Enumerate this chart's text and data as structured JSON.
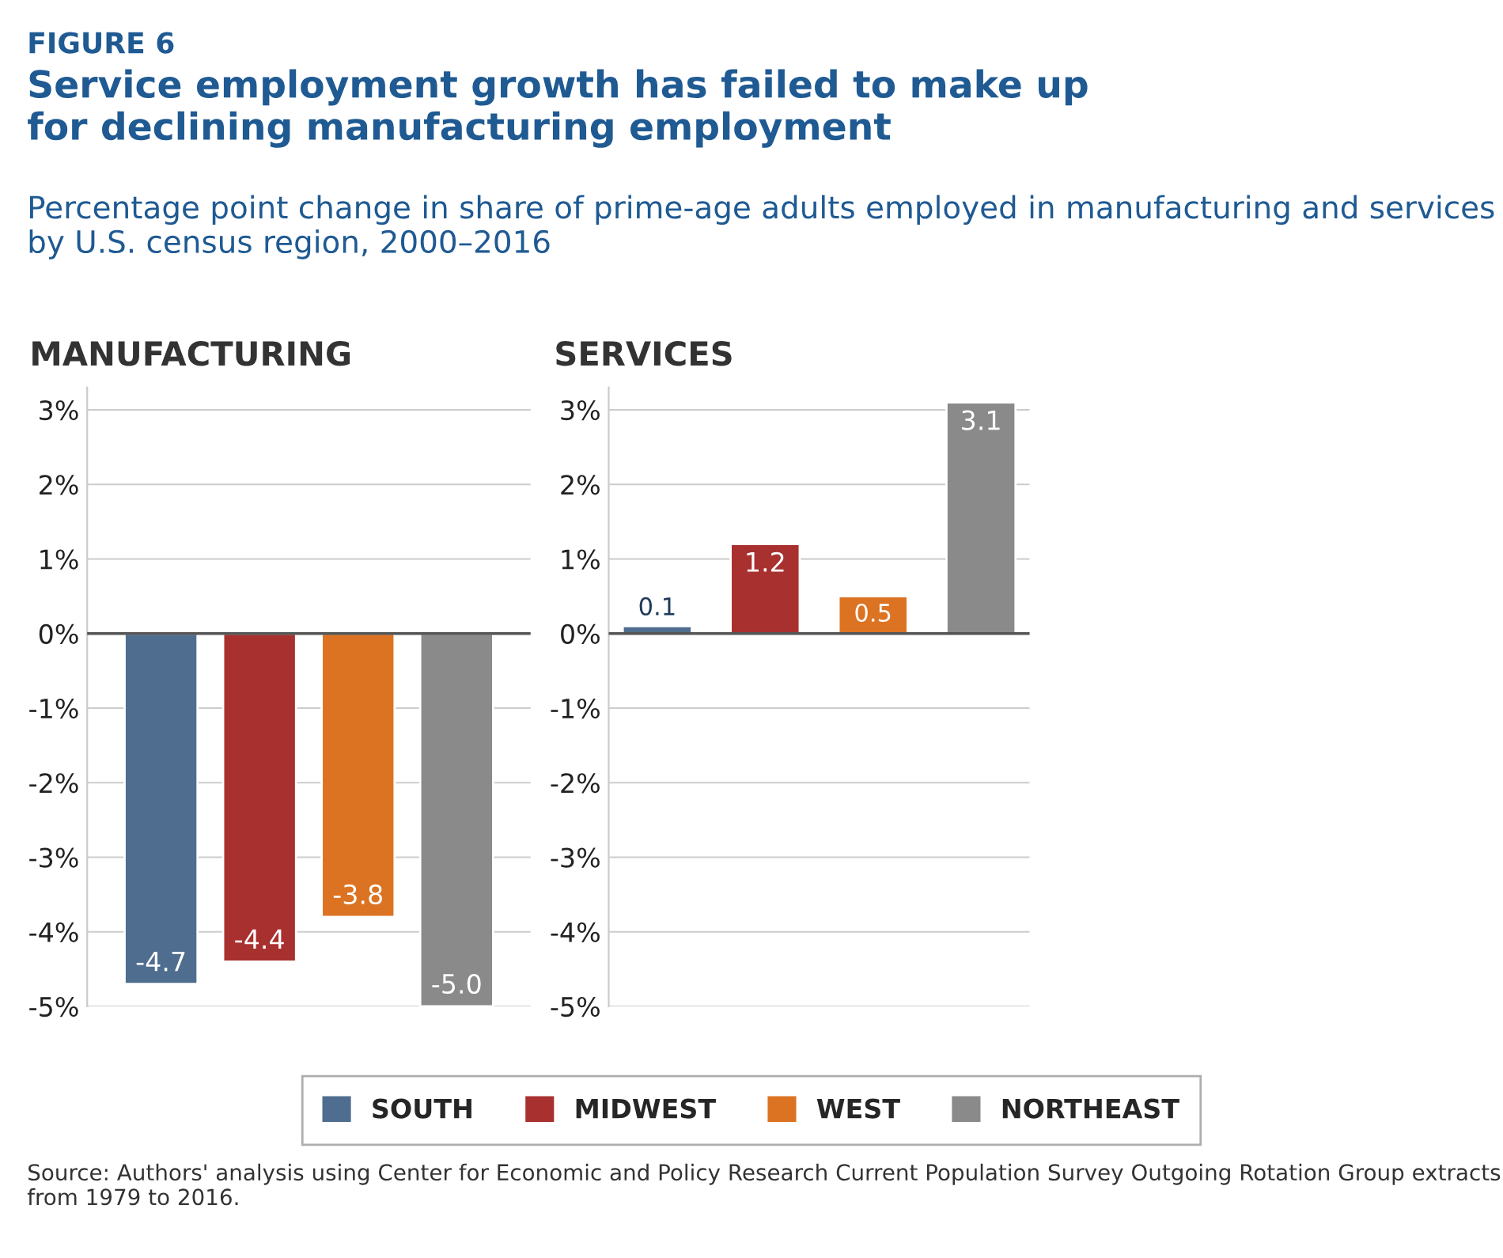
{
  "chart_data": [
    {
      "type": "bar",
      "title": "MANUFACTURING",
      "categories": [
        null
      ],
      "series": [
        {
          "name": "SOUTH",
          "color": "#4f6d8f",
          "values": [
            -4.7
          ],
          "value_labels": [
            "-4.7"
          ]
        },
        {
          "name": "MIDWEST",
          "color": "#a8302f",
          "values": [
            -4.4
          ],
          "value_labels": [
            "-4.4"
          ]
        },
        {
          "name": "WEST",
          "color": "#dc7322",
          "values": [
            -3.8
          ],
          "value_labels": [
            "-3.8"
          ]
        },
        {
          "name": "NORTHEAST",
          "color": "#8a8a8a",
          "values": [
            -5.0
          ],
          "value_labels": [
            "-5.0"
          ]
        }
      ],
      "ylim": [
        -5,
        3.3
      ],
      "yticks": [
        {
          "value": 3,
          "label": "3%"
        },
        {
          "value": 2,
          "label": "2%"
        },
        {
          "value": 1,
          "label": "1%"
        },
        {
          "value": 0,
          "label": "0%"
        },
        {
          "value": -1,
          "label": "-1%"
        },
        {
          "value": -2,
          "label": "-2%"
        },
        {
          "value": -3,
          "label": "-3%"
        },
        {
          "value": -4,
          "label": "-4%"
        },
        {
          "value": -5,
          "label": "-5%"
        }
      ],
      "grid": "y",
      "legend": "bottom",
      "data_labels": true,
      "ref_lines": [
        {
          "axis": "y",
          "value": 0,
          "label": null,
          "color": "#555555"
        }
      ],
      "annotations": [
        "FIGURE 6",
        "Service employment growth has failed to make up for declining manufacturing employment",
        "Percentage point change in share of prime-age adults employed in manufacturing and services by U.S. census region, 2000–2016",
        "Source: Authors' analysis using Center for Economic and Policy Research Current Population Survey Outgoing Rotation Group extracts from 1979 to 2016."
      ]
    },
    {
      "type": "bar",
      "title": "SERVICES",
      "categories": [
        null,
        null,
        null,
        null
      ],
      "series": [
        {
          "colors": [
            "#4f6d8f",
            "#a8302f",
            "#dc7322",
            "#8a8a8a"
          ],
          "values": [
            0.1,
            1.2,
            0.5,
            3.1
          ],
          "value_labels": [
            "0.1",
            "1.2",
            "0.5",
            "3.1"
          ]
        }
      ],
      "ylim": [
        -5,
        3.3
      ],
      "data_labels": true,
      "yticks": [
        {
          "value": 3,
          "label": "3%"
        },
        {
          "value": 2,
          "label": "2%"
        },
        {
          "value": 1,
          "label": "1%"
        },
        {
          "value": 0,
          "label": "0%"
        },
        {
          "value": -1,
          "label": "-1%"
        },
        {
          "value": -2,
          "label": "-2%"
        },
        {
          "value": -3,
          "label": "-3%"
        },
        {
          "value": -4,
          "label": "-4%"
        },
        {
          "value": -5,
          "label": "-5%"
        }
      ],
      "grid": "y",
      "ref_lines": [
        {
          "axis": "y",
          "value": 0,
          "label": null,
          "color": "#555555"
        }
      ]
    }
  ]
}
